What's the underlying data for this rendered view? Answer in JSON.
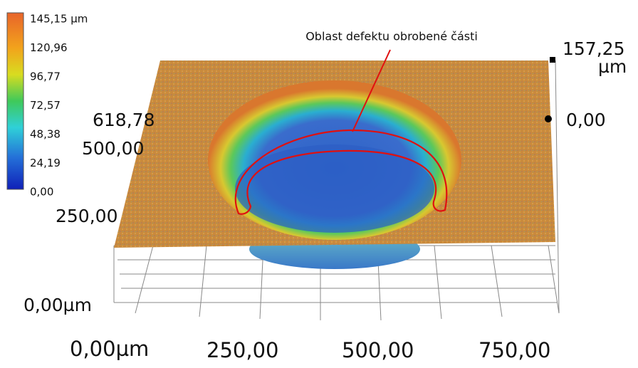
{
  "colorbar": {
    "labels": [
      "145,15 µm",
      "120,96",
      "96,77",
      "72,57",
      "48,38",
      "24,19",
      "0,00"
    ]
  },
  "axes": {
    "y_labels": [
      "618,78",
      "500,00",
      "250,00",
      "0,00µm"
    ],
    "x_labels": [
      "0,00µm",
      "250,00",
      "500,00",
      "750,00"
    ],
    "z_max": "157,25",
    "z_unit": "µm",
    "z_min": "0,00"
  },
  "annotation": "Oblast defektu obrobené části"
}
